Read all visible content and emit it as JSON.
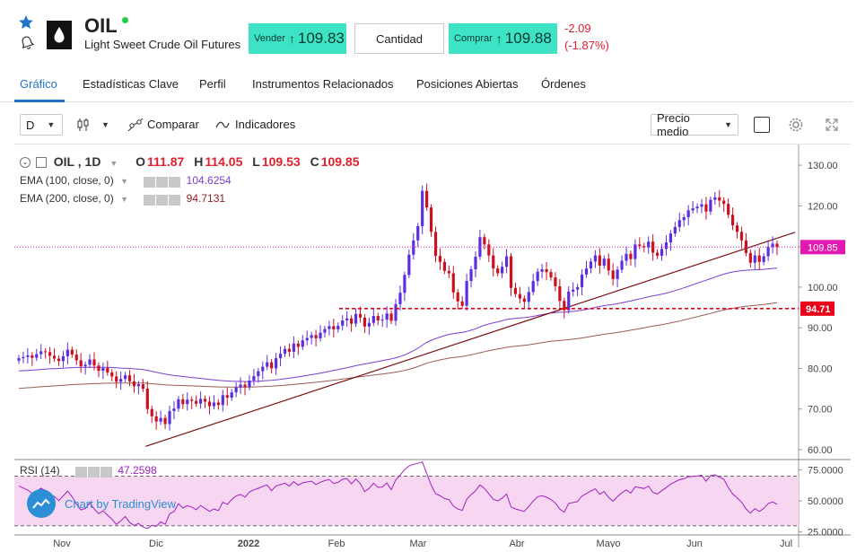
{
  "header": {
    "symbol": "OIL",
    "fullname": "Light Sweet Crude Oil Futures",
    "sell_label": "Vender",
    "sell_price": "109.83",
    "quantity_label": "Cantidad",
    "buy_label": "Comprar",
    "buy_price": "109.88",
    "change": "-2.09",
    "change_pct": "(-1.87%)",
    "colors": {
      "buttons": "#3ee2c4",
      "negative": "#e0202e",
      "accent": "#1f74c8",
      "live_dot": "#22cc44"
    },
    "icons": [
      "star-icon",
      "bell-icon",
      "oil-drop-logo-icon"
    ]
  },
  "tabs": [
    {
      "label": "Gráfico",
      "active": true
    },
    {
      "label": "Estadísticas Clave",
      "active": false
    },
    {
      "label": "Perfil",
      "active": false
    },
    {
      "label": "Instrumentos Relacionados",
      "active": false
    },
    {
      "label": "Posiciones Abiertas",
      "active": false
    },
    {
      "label": "Órdenes",
      "active": false
    }
  ],
  "toolbar": {
    "interval": "D",
    "compare_label": "Comparar",
    "indicators_label": "Indicadores",
    "price_mode": "Precio medio",
    "icons": [
      "candles-icon",
      "compare-icon",
      "indicators-icon",
      "checkbox-icon",
      "gear-icon",
      "fullscreen-icon"
    ]
  },
  "legend": {
    "title": "OIL , 1D",
    "o_key": "O",
    "o_val": "111.87",
    "h_key": "H",
    "h_val": "114.05",
    "l_key": "L",
    "l_val": "109.53",
    "c_key": "C",
    "c_val": "109.85",
    "ema100_label": "EMA (100, close, 0)",
    "ema100_val": "104.6254",
    "ema200_label": "EMA (200, close, 0)",
    "ema200_val": "94.7131",
    "rsi_label": "RSI (14)",
    "rsi_val": "47.2598"
  },
  "watermark": {
    "prefix": "Chart by ",
    "brand": "TradingView"
  },
  "chart_data": {
    "type": "candlestick",
    "y_ticks": [
      "130.00",
      "120.00",
      "110.00",
      "100.00",
      "90.00",
      "80.00",
      "70.00",
      "60.00"
    ],
    "ylim": [
      58,
      134
    ],
    "x_ticks": [
      "Nov",
      "Dic",
      "2022",
      "Feb",
      "Mar",
      "Abr",
      "Mayo",
      "Jun",
      "Jul"
    ],
    "last_price_label": "109.85",
    "horizontal_level_label": "94.71",
    "horizontal_level": 94.71,
    "rsi_ticks": [
      "75.0000",
      "50.0000",
      "25.0000"
    ],
    "rsi_ylim": [
      24,
      82
    ],
    "rsi_band": [
      30,
      70
    ],
    "colors": {
      "up": "#5b2ee0",
      "down": "#cc1020",
      "ema100": "#7a3fd0",
      "ema200": "#9b5b55",
      "trendline": "#7a1010",
      "level": "#e8001a",
      "last_price": "#e01ab0",
      "rsi": "#a020c0",
      "rsi_fill": "#f6d6f0"
    },
    "closes": [
      82.5,
      82.8,
      83.2,
      82.6,
      83.5,
      84.2,
      84.0,
      83.1,
      82.4,
      81.8,
      83.0,
      84.6,
      83.4,
      82.0,
      80.5,
      80.9,
      82.2,
      80.7,
      79.4,
      80.1,
      79.0,
      78.0,
      76.7,
      77.4,
      78.3,
      76.8,
      75.6,
      76.1,
      75.0,
      70.0,
      68.2,
      66.9,
      67.8,
      66.3,
      69.5,
      70.1,
      72.4,
      71.2,
      72.3,
      72.0,
      71.3,
      72.5,
      71.8,
      70.7,
      71.6,
      71.0,
      73.4,
      72.8,
      74.1,
      75.3,
      76.0,
      75.4,
      77.0,
      78.1,
      79.3,
      80.4,
      81.5,
      80.0,
      82.5,
      83.6,
      84.8,
      84.1,
      86.1,
      85.3,
      86.9,
      87.5,
      88.2,
      87.4,
      88.8,
      89.7,
      90.4,
      89.6,
      90.5,
      91.8,
      92.3,
      91.0,
      93.4,
      92.5,
      90.3,
      91.2,
      92.9,
      91.8,
      92.0,
      93.5,
      91.7,
      95.8,
      98.6,
      103.0,
      108.0,
      111.5,
      115.0,
      123.7,
      119.6,
      113.6,
      107.7,
      106.2,
      104.0,
      103.4,
      98.7,
      96.5,
      95.4,
      101.5,
      104.4,
      107.5,
      112.3,
      110.5,
      107.8,
      104.6,
      103.4,
      105.0,
      107.6,
      99.8,
      98.3,
      97.2,
      96.4,
      98.8,
      101.5,
      103.8,
      104.4,
      103.7,
      102.4,
      100.2,
      96.6,
      94.3,
      98.9,
      99.4,
      100.0,
      103.1,
      104.6,
      106.3,
      107.8,
      105.3,
      107.0,
      104.1,
      102.0,
      104.3,
      106.5,
      108.2,
      106.9,
      110.5,
      110.1,
      109.8,
      111.2,
      108.5,
      107.7,
      109.4,
      111.0,
      113.2,
      114.8,
      116.5,
      117.2,
      118.9,
      119.4,
      119.8,
      120.4,
      118.6,
      121.5,
      122.1,
      121.3,
      120.5,
      117.8,
      115.2,
      113.6,
      111.5,
      108.4,
      106.0,
      107.8,
      106.2,
      107.6,
      109.9,
      110.7,
      109.85
    ],
    "rsi": [
      62.0,
      60.5,
      58.8,
      56.2,
      58.0,
      60.3,
      58.5,
      55.0,
      53.6,
      50.3,
      54.1,
      58.0,
      53.4,
      47.5,
      42.8,
      44.0,
      48.3,
      43.5,
      39.8,
      42.0,
      38.6,
      35.2,
      31.0,
      33.9,
      37.5,
      32.6,
      30.2,
      31.8,
      29.0,
      27.8,
      30.3,
      29.5,
      33.1,
      31.2,
      39.6,
      41.5,
      47.8,
      44.3,
      46.2,
      45.1,
      42.9,
      46.3,
      44.0,
      41.6,
      43.5,
      42.3,
      49.0,
      47.3,
      51.2,
      54.0,
      55.3,
      53.1,
      57.2,
      59.0,
      60.2,
      61.8,
      62.9,
      58.3,
      62.1,
      63.2,
      64.4,
      62.0,
      65.6,
      62.8,
      64.7,
      65.3,
      66.0,
      63.2,
      65.2,
      66.4,
      67.3,
      64.1,
      65.0,
      67.5,
      68.0,
      63.8,
      67.7,
      64.0,
      57.6,
      60.2,
      64.4,
      61.0,
      61.3,
      64.6,
      59.1,
      67.1,
      71.0,
      75.3,
      78.2,
      79.6,
      80.4,
      81.5,
      72.3,
      62.7,
      55.8,
      54.3,
      51.9,
      51.1,
      45.8,
      43.5,
      42.4,
      51.3,
      55.0,
      58.2,
      63.0,
      60.1,
      55.8,
      51.4,
      50.0,
      52.2,
      55.6,
      45.2,
      43.6,
      42.5,
      41.6,
      45.6,
      49.9,
      53.4,
      54.2,
      53.0,
      51.2,
      48.3,
      43.4,
      40.8,
      48.0,
      48.7,
      49.5,
      54.0,
      56.0,
      58.1,
      59.8,
      55.4,
      57.6,
      52.9,
      49.8,
      53.4,
      56.6,
      58.9,
      56.3,
      61.4,
      60.8,
      60.0,
      62.0,
      56.9,
      55.6,
      58.3,
      60.8,
      63.6,
      65.5,
      67.2,
      67.9,
      69.6,
      69.9,
      70.2,
      70.8,
      66.0,
      70.4,
      71.1,
      69.2,
      67.5,
      60.9,
      55.6,
      52.5,
      49.1,
      43.6,
      40.2,
      43.9,
      41.5,
      44.0,
      47.9,
      49.2,
      47.26
    ]
  }
}
